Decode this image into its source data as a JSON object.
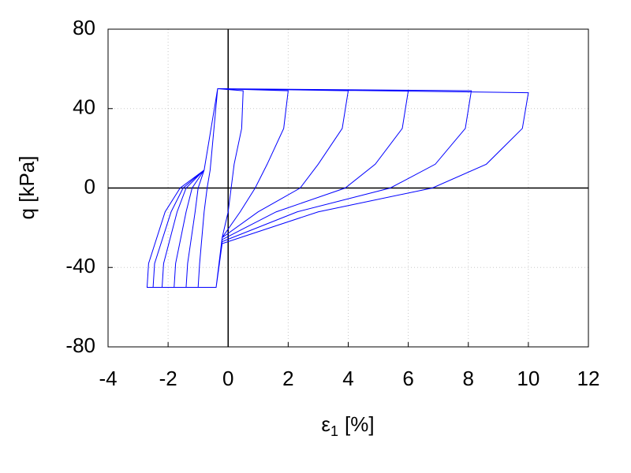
{
  "chart_data": {
    "type": "line",
    "xlabel": [
      "ε",
      "1",
      "[%]"
    ],
    "ylabel": "q [kPa]",
    "xlim": [
      -4,
      12
    ],
    "xticks": [
      -4,
      -2,
      0,
      2,
      4,
      6,
      8,
      10,
      12
    ],
    "ylim": [
      -80,
      80
    ],
    "yticks": [
      -80,
      -40,
      0,
      40,
      80
    ],
    "grid": true,
    "series": [
      {
        "color": "#0000ff",
        "x": [
          -0.35,
          0.5,
          0.45,
          0.2,
          0.1,
          0,
          -0.2,
          -0.4,
          -1.0,
          -0.95,
          -0.8,
          -0.7,
          -0.6,
          -0.35,
          2,
          1.85,
          1.3,
          0.9,
          0.4,
          -0.2,
          -0.4,
          -1.4,
          -1.35,
          -1.1,
          -1.0,
          -0.8,
          -0.35,
          4,
          3.8,
          3.0,
          2.4,
          1.0,
          -0.2,
          -0.4,
          -1.8,
          -1.75,
          -1.4,
          -1.2,
          -0.8,
          -0.35,
          6,
          5.8,
          4.9,
          3.9,
          1.6,
          -0.2,
          -0.4,
          -2.2,
          -2.15,
          -1.7,
          -1.4,
          -0.8,
          -0.35,
          8.1,
          7.9,
          6.9,
          5.4,
          2.3,
          -0.2,
          -0.4,
          -2.5,
          -2.45,
          -1.9,
          -1.5,
          -0.8,
          -0.35,
          10,
          9.8,
          8.6,
          6.8,
          3,
          -0.2,
          -0.4,
          -2.7,
          -2.65,
          -2.1,
          -1.6,
          -0.8,
          -0.35
        ],
        "y": [
          50,
          49,
          30,
          12,
          0,
          -12,
          -25,
          -50,
          -50,
          -38,
          -12,
          0,
          9,
          50,
          49,
          30,
          12,
          0,
          -12,
          -25,
          -50,
          -50,
          -38,
          -12,
          0,
          9,
          50,
          49,
          30,
          12,
          0,
          -12,
          -25,
          -50,
          -50,
          -38,
          -12,
          0,
          9,
          50,
          49,
          30,
          12,
          0,
          -12,
          -26,
          -50,
          -50,
          -38,
          -12,
          0,
          9,
          50,
          49,
          30,
          12,
          0,
          -12,
          -27,
          -50,
          -50,
          -38,
          -12,
          0,
          9,
          50,
          48,
          30,
          12,
          0,
          -12,
          -28,
          -50,
          -50,
          -38,
          -12,
          0,
          9,
          50
        ]
      }
    ]
  }
}
